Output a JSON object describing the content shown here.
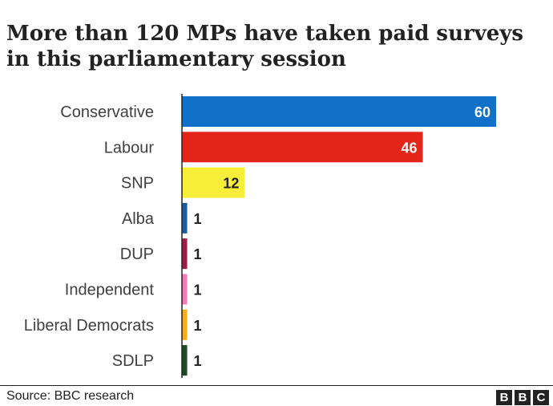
{
  "title_lines": [
    "More than 120 MPs have taken paid surveys",
    "in this parliamentary session"
  ],
  "source": "Source: BBC research",
  "logo": {
    "letters": [
      "B",
      "B",
      "C"
    ]
  },
  "chart_data": {
    "type": "bar",
    "orientation": "horizontal",
    "categories": [
      "Conservative",
      "Labour",
      "SNP",
      "Alba",
      "DUP",
      "Independent",
      "Liberal Democrats",
      "SDLP"
    ],
    "values": [
      60,
      46,
      12,
      1,
      1,
      1,
      1,
      1
    ],
    "colors": [
      "#1170c8",
      "#e4261a",
      "#f7ee3a",
      "#1d5e9a",
      "#9e1c48",
      "#f27db4",
      "#f5ad1e",
      "#1d4a26"
    ],
    "label_colors": [
      "#ffffff",
      "#ffffff",
      "#222222",
      "#222222",
      "#222222",
      "#222222",
      "#222222",
      "#222222"
    ],
    "label_position": [
      "inside",
      "inside",
      "inside",
      "outside",
      "outside",
      "outside",
      "outside",
      "outside"
    ],
    "xlim": [
      0,
      60
    ],
    "grid": false,
    "legend": "none",
    "axis_line": true
  }
}
